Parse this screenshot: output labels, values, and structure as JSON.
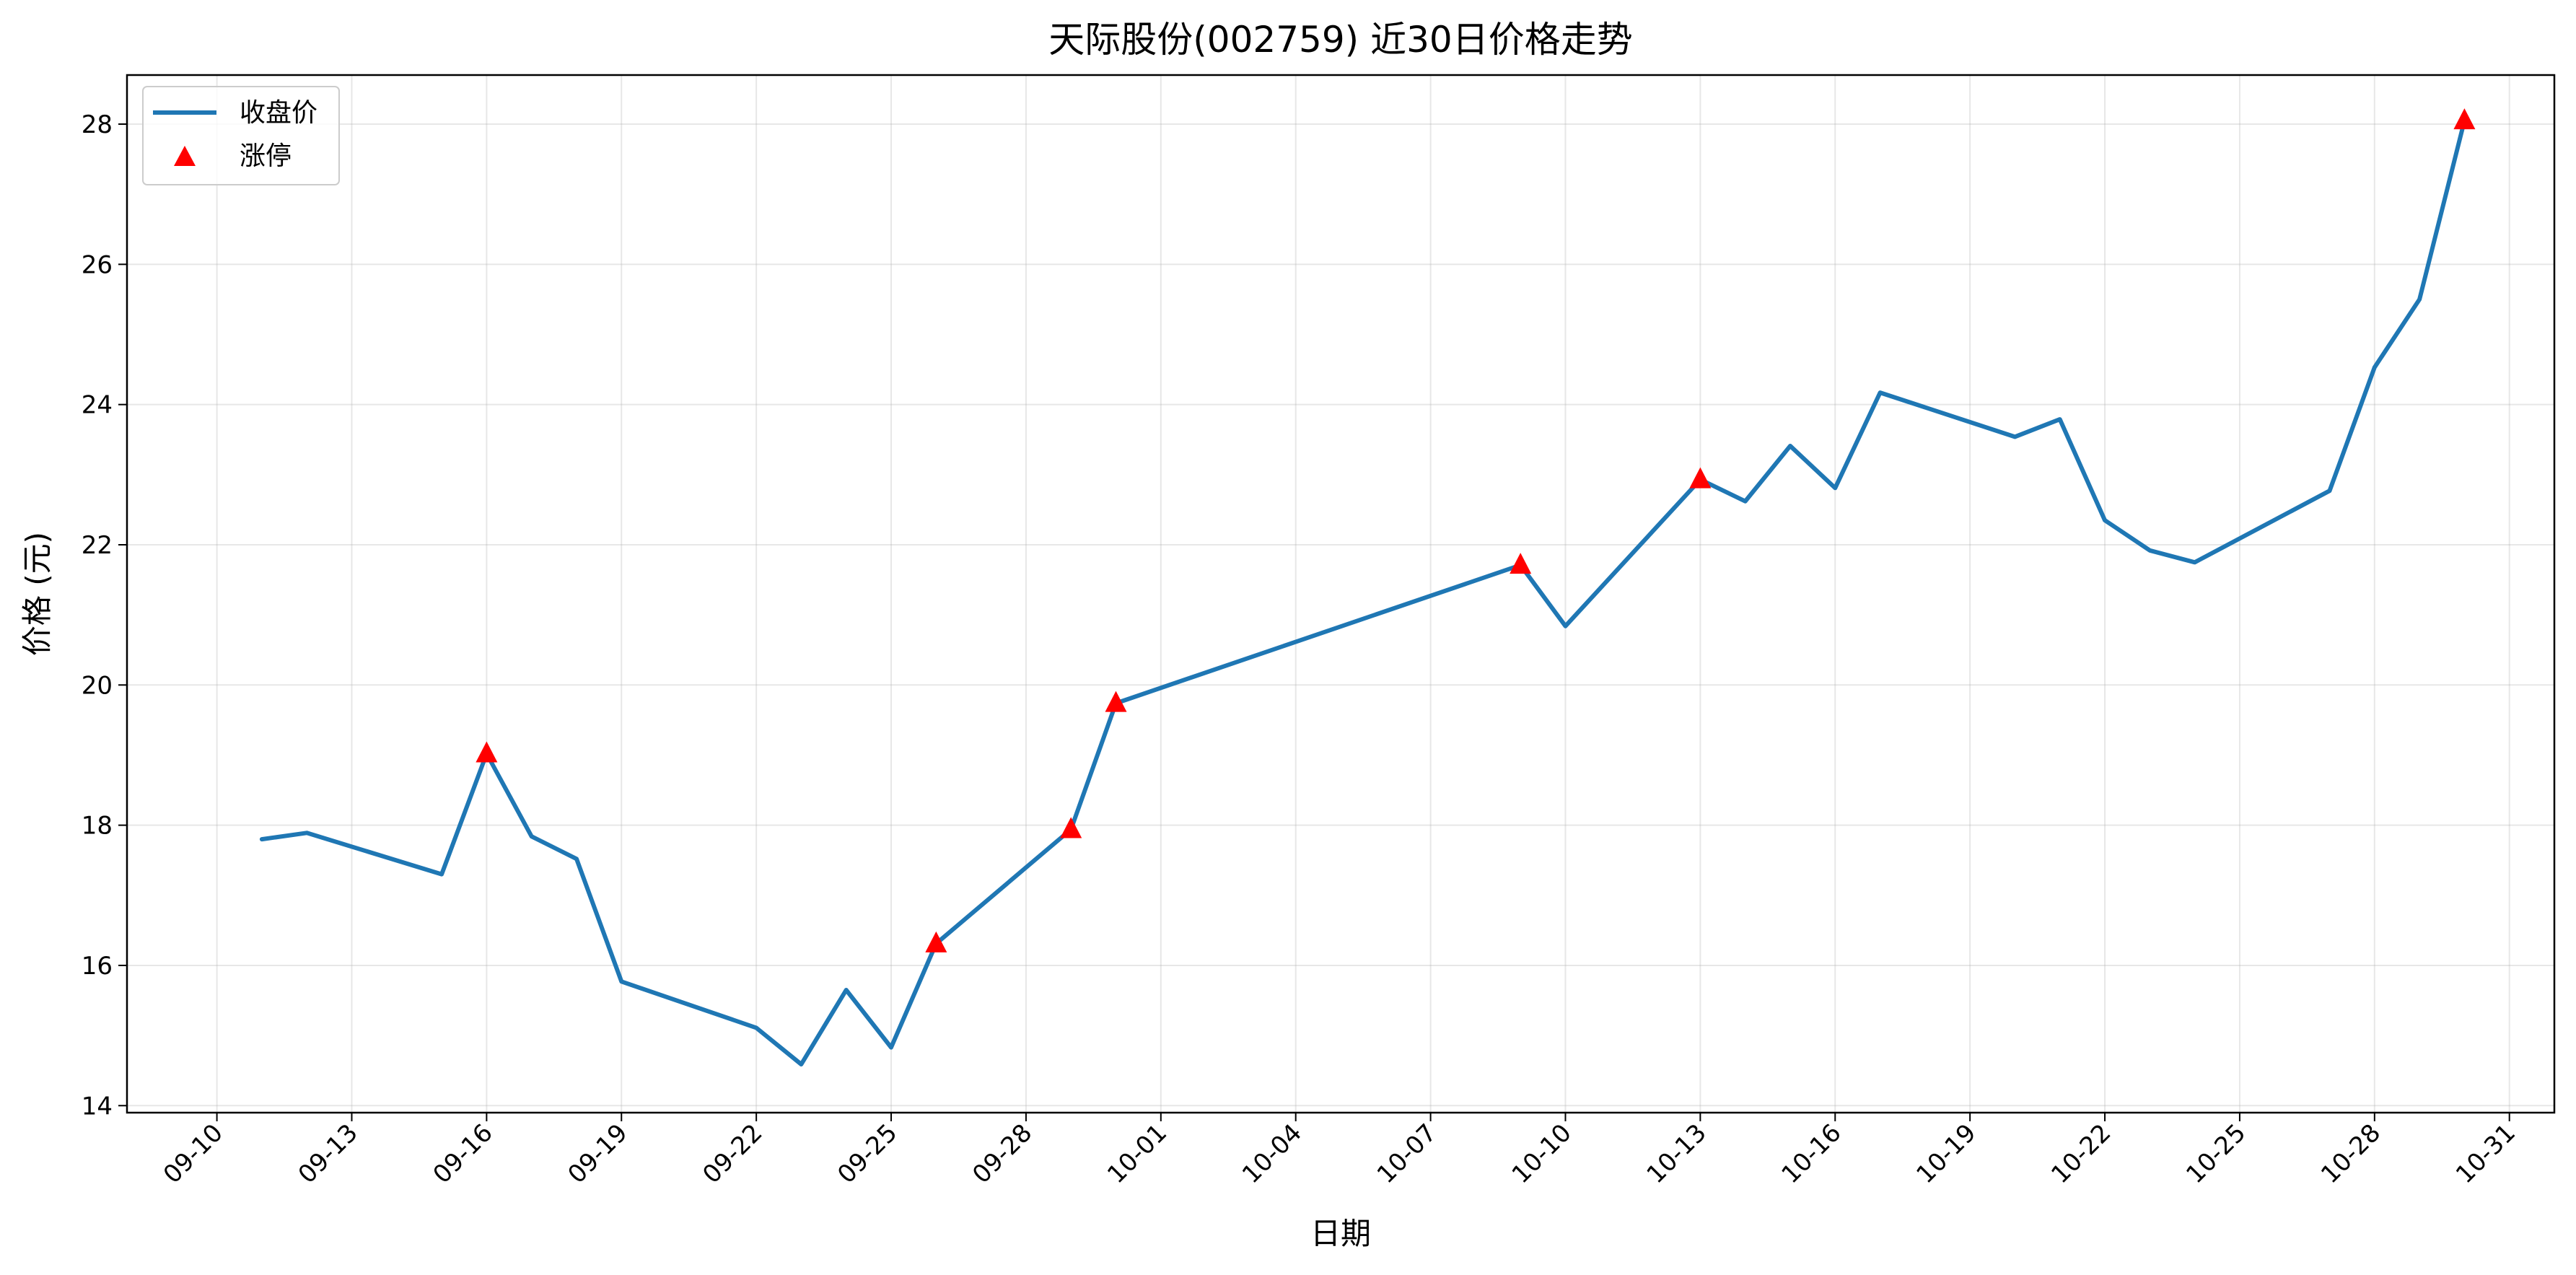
{
  "chart_data": {
    "type": "line",
    "title": "天际股份(002759) 近30日价格走势",
    "xlabel": "日期",
    "ylabel": "价格 (元)",
    "x_axis": {
      "type": "date",
      "range": [
        "2025-09-08",
        "2025-11-01"
      ],
      "tick_labels": [
        "09-10",
        "09-13",
        "09-16",
        "09-19",
        "09-22",
        "09-25",
        "09-28",
        "10-01",
        "10-04",
        "10-07",
        "10-10",
        "10-13",
        "10-16",
        "10-19",
        "10-22",
        "10-25",
        "10-28",
        "10-31"
      ]
    },
    "ylim": [
      13.9,
      28.7
    ],
    "y_ticks": [
      14,
      16,
      18,
      20,
      22,
      24,
      26,
      28
    ],
    "grid": true,
    "legend_position": "top-left",
    "series": [
      {
        "name": "收盘价",
        "kind": "line",
        "color": "#1f77b4",
        "points": [
          {
            "x": "2025-09-11",
            "y": 17.8
          },
          {
            "x": "2025-09-12",
            "y": 17.89
          },
          {
            "x": "2025-09-15",
            "y": 17.3
          },
          {
            "x": "2025-09-16",
            "y": 19.02
          },
          {
            "x": "2025-09-17",
            "y": 17.84
          },
          {
            "x": "2025-09-18",
            "y": 17.52
          },
          {
            "x": "2025-09-19",
            "y": 15.77
          },
          {
            "x": "2025-09-22",
            "y": 15.11
          },
          {
            "x": "2025-09-23",
            "y": 14.59
          },
          {
            "x": "2025-09-24",
            "y": 15.65
          },
          {
            "x": "2025-09-25",
            "y": 14.83
          },
          {
            "x": "2025-09-26",
            "y": 16.31
          },
          {
            "x": "2025-09-29",
            "y": 17.94
          },
          {
            "x": "2025-09-30",
            "y": 19.74
          },
          {
            "x": "2025-10-09",
            "y": 21.71
          },
          {
            "x": "2025-10-10",
            "y": 20.84
          },
          {
            "x": "2025-10-13",
            "y": 22.93
          },
          {
            "x": "2025-10-14",
            "y": 22.62
          },
          {
            "x": "2025-10-15",
            "y": 23.41
          },
          {
            "x": "2025-10-16",
            "y": 22.81
          },
          {
            "x": "2025-10-17",
            "y": 24.17
          },
          {
            "x": "2025-10-20",
            "y": 23.54
          },
          {
            "x": "2025-10-21",
            "y": 23.79
          },
          {
            "x": "2025-10-22",
            "y": 22.35
          },
          {
            "x": "2025-10-23",
            "y": 21.92
          },
          {
            "x": "2025-10-24",
            "y": 21.75
          },
          {
            "x": "2025-10-27",
            "y": 22.77
          },
          {
            "x": "2025-10-28",
            "y": 24.53
          },
          {
            "x": "2025-10-29",
            "y": 25.5
          },
          {
            "x": "2025-10-30",
            "y": 28.05
          }
        ]
      },
      {
        "name": "涨停",
        "kind": "scatter",
        "marker": "triangle-up",
        "color": "#ff0000",
        "points": [
          {
            "x": "2025-09-16",
            "y": 19.02
          },
          {
            "x": "2025-09-26",
            "y": 16.31
          },
          {
            "x": "2025-09-29",
            "y": 17.94
          },
          {
            "x": "2025-09-30",
            "y": 19.74
          },
          {
            "x": "2025-10-09",
            "y": 21.71
          },
          {
            "x": "2025-10-13",
            "y": 22.93
          },
          {
            "x": "2025-10-30",
            "y": 28.05
          }
        ]
      }
    ]
  }
}
